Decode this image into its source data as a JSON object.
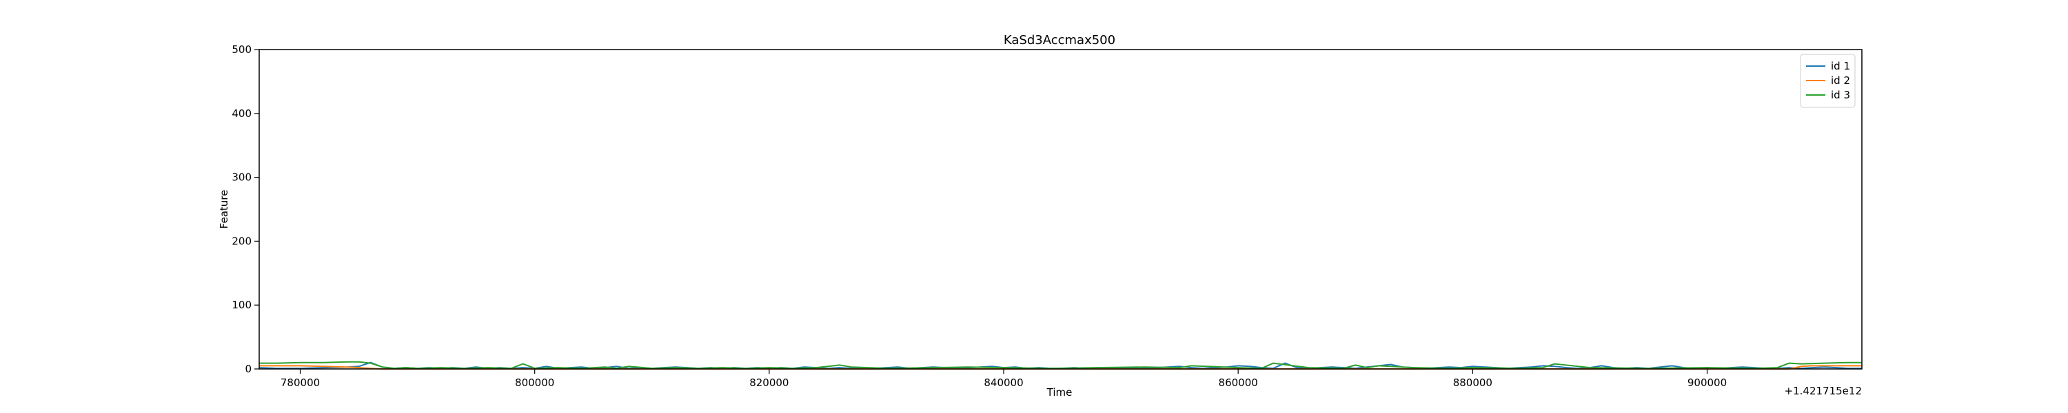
{
  "chart_data": {
    "type": "line",
    "title": "KaSd3Accmax500",
    "xlabel": "Time",
    "ylabel": "Feature",
    "x_offset_text": "+1.421715e12",
    "xlim": [
      776500,
      913200
    ],
    "ylim": [
      0,
      500
    ],
    "xticks": [
      780000,
      800000,
      820000,
      840000,
      860000,
      880000,
      900000
    ],
    "yticks": [
      0,
      100,
      200,
      300,
      400,
      500
    ],
    "grid": false,
    "legend_position": "top-right",
    "series": [
      {
        "name": "id 1",
        "color": "#1f77b4",
        "x": [
          776500,
          778000,
          780000,
          782000,
          784000,
          785000,
          786000,
          787000,
          788000,
          789000,
          790000,
          791000,
          792000,
          793000,
          794000,
          795000,
          796000,
          797000,
          798000,
          799000,
          800000,
          801000,
          802000,
          803000,
          804000,
          805000,
          806000,
          807000,
          808000,
          809000,
          810000,
          811000,
          812000,
          813000,
          814000,
          815000,
          816000,
          817000,
          818000,
          819000,
          820000,
          821000,
          822000,
          823000,
          824000,
          825000,
          826000,
          827000,
          828000,
          829000,
          830000,
          831000,
          832000,
          833000,
          834000,
          835000,
          836000,
          837000,
          838000,
          839000,
          840000,
          841000,
          842000,
          843000,
          844000,
          845000,
          846000,
          847000,
          848000,
          849000,
          850000,
          851000,
          852000,
          853000,
          854000,
          855000,
          856000,
          857000,
          858000,
          859000,
          860000,
          861000,
          862000,
          863000,
          864000,
          865000,
          866000,
          867000,
          868000,
          869000,
          870000,
          871000,
          872000,
          873000,
          874000,
          875000,
          876000,
          877000,
          878000,
          879000,
          880000,
          881000,
          882000,
          883000,
          884000,
          885000,
          886000,
          887000,
          888000,
          889000,
          890000,
          891000,
          892000,
          893000,
          894000,
          895000,
          896000,
          897000,
          898000,
          899000,
          900000,
          901000,
          902000,
          903000,
          904000,
          905000,
          906000,
          907000,
          908000,
          909000,
          910000,
          911000,
          912000,
          913200
        ],
        "y": [
          2,
          1,
          1,
          2,
          3,
          4,
          10,
          3,
          1,
          2,
          1,
          2,
          1,
          2,
          1,
          3,
          1,
          2,
          1,
          2,
          1,
          4,
          1,
          2,
          3,
          1,
          2,
          4,
          1,
          2,
          1,
          2,
          3,
          2,
          1,
          2,
          1,
          2,
          1,
          2,
          1,
          2,
          1,
          3,
          2,
          1,
          2,
          1,
          2,
          1,
          2,
          3,
          1,
          2,
          3,
          2,
          1,
          2,
          3,
          4,
          2,
          3,
          1,
          2,
          1,
          1,
          2,
          1,
          2,
          1,
          2,
          2,
          1,
          2,
          3,
          4,
          2,
          1,
          2,
          3,
          5,
          4,
          2,
          1,
          9,
          2,
          1,
          2,
          3,
          2,
          1,
          3,
          5,
          7,
          3,
          2,
          1,
          2,
          3,
          2,
          4,
          3,
          2,
          1,
          2,
          3,
          5,
          4,
          2,
          1,
          2,
          5,
          2,
          1,
          2,
          1,
          3,
          5,
          2,
          1,
          2,
          1,
          2,
          3,
          2,
          1,
          1,
          2,
          1,
          2,
          3,
          2,
          1,
          1
        ]
      },
      {
        "name": "id 2",
        "color": "#ff7f0e",
        "x": [
          776500,
          778000,
          780000,
          782000,
          784000,
          785000,
          786000,
          787000,
          790000,
          795000,
          800000,
          805000,
          810000,
          815000,
          820000,
          825000,
          830000,
          835000,
          840000,
          845000,
          850000,
          855000,
          860000,
          865000,
          870000,
          875000,
          880000,
          885000,
          890000,
          895000,
          900000,
          905000,
          907000,
          908000,
          909000,
          910000,
          911000,
          912000,
          913200
        ],
        "y": [
          5,
          5,
          5,
          4,
          3,
          2,
          1,
          0,
          0,
          0,
          0,
          0,
          0,
          0,
          0,
          0,
          0,
          0,
          0,
          0,
          0,
          0,
          0,
          0,
          0,
          0,
          0,
          0,
          0,
          0,
          0,
          0,
          0,
          4,
          5,
          5,
          5,
          5,
          5
        ]
      },
      {
        "name": "id 3",
        "color": "#2ca02c",
        "x": [
          776500,
          778000,
          780000,
          782000,
          784000,
          785000,
          786000,
          787000,
          788000,
          789000,
          790000,
          792000,
          794000,
          796000,
          798000,
          799000,
          800000,
          802000,
          804000,
          806000,
          807000,
          808000,
          810000,
          812000,
          814000,
          816000,
          818000,
          820000,
          822000,
          824000,
          826000,
          827000,
          830000,
          834000,
          837000,
          840000,
          844000,
          848000,
          852000,
          855000,
          856000,
          860000,
          862000,
          863000,
          866000,
          869000,
          870000,
          871000,
          872000,
          875000,
          878000,
          880000,
          884000,
          886000,
          887000,
          890000,
          895000,
          900000,
          904000,
          906000,
          907000,
          908000,
          910000,
          912000,
          913200
        ],
        "y": [
          9,
          9,
          10,
          10,
          11,
          11,
          9,
          3,
          1,
          2,
          1,
          2,
          1,
          2,
          1,
          8,
          1,
          2,
          1,
          3,
          1,
          4,
          1,
          2,
          1,
          2,
          1,
          2,
          1,
          2,
          6,
          3,
          1,
          2,
          3,
          2,
          1,
          2,
          3,
          2,
          5,
          2,
          1,
          9,
          2,
          1,
          6,
          2,
          5,
          2,
          1,
          2,
          1,
          2,
          8,
          2,
          1,
          2,
          1,
          2,
          9,
          8,
          9,
          10,
          10
        ]
      }
    ]
  }
}
